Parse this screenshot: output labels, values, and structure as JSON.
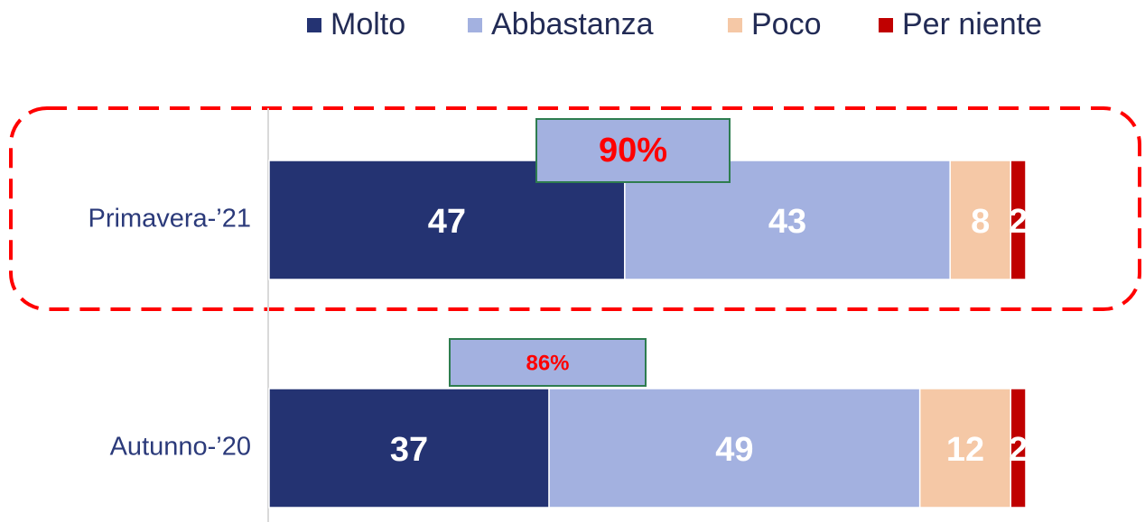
{
  "chart_data": {
    "type": "stacked-bar",
    "orientation": "horizontal",
    "categories": [
      "Primavera-’21",
      "Autunno-’20"
    ],
    "series": [
      {
        "name": "Molto",
        "color": "#243372",
        "values": [
          47,
          37
        ]
      },
      {
        "name": "Abbastanza",
        "color": "#a3b1e0",
        "values": [
          43,
          49
        ]
      },
      {
        "name": "Poco",
        "color": "#f5c8a6",
        "values": [
          8,
          12
        ]
      },
      {
        "name": "Per niente",
        "color": "#c00000",
        "values": [
          2,
          2
        ]
      }
    ],
    "xlim": [
      0,
      100
    ],
    "annotations": [
      {
        "text": "90%"
      },
      {
        "text": "86%"
      }
    ],
    "legend": "top"
  }
}
